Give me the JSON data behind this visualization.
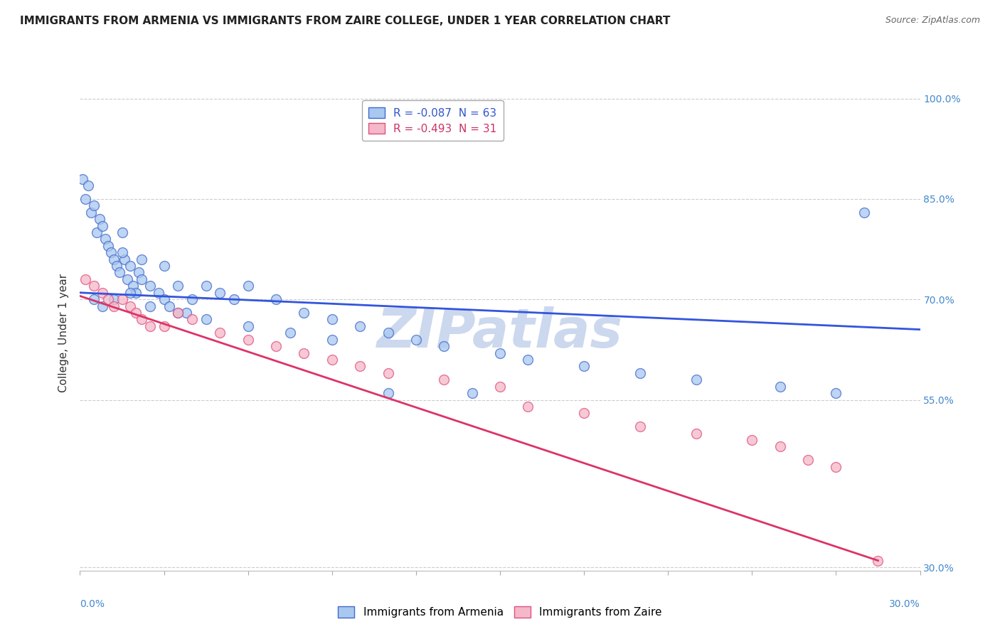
{
  "title": "IMMIGRANTS FROM ARMENIA VS IMMIGRANTS FROM ZAIRE COLLEGE, UNDER 1 YEAR CORRELATION CHART",
  "source": "Source: ZipAtlas.com",
  "ylabel": "College, Under 1 year",
  "legend_entries": [
    {
      "label": "R = -0.087  N = 63",
      "color_face": "#a8c8f0",
      "color_edge": "#4169cc"
    },
    {
      "label": "R = -0.493  N = 31",
      "color_face": "#f5b8c8",
      "color_edge": "#e05080"
    }
  ],
  "legend_text_colors": [
    "#3355cc",
    "#cc3366"
  ],
  "watermark": "ZIPatlas",
  "xlim": [
    0.0,
    0.3
  ],
  "ylim": [
    0.295,
    1.005
  ],
  "yticks": [
    0.3,
    0.55,
    0.7,
    0.85,
    1.0
  ],
  "ytick_labels": [
    "30.0%",
    "55.0%",
    "70.0%",
    "85.0%",
    "100.0%"
  ],
  "xticks": [
    0.0,
    0.03,
    0.06,
    0.09,
    0.12,
    0.15,
    0.18,
    0.21,
    0.24,
    0.27,
    0.3
  ],
  "blue_scatter_x": [
    0.001,
    0.002,
    0.003,
    0.004,
    0.005,
    0.006,
    0.007,
    0.008,
    0.009,
    0.01,
    0.011,
    0.012,
    0.013,
    0.014,
    0.015,
    0.016,
    0.017,
    0.018,
    0.019,
    0.02,
    0.021,
    0.022,
    0.025,
    0.028,
    0.03,
    0.032,
    0.035,
    0.038,
    0.04,
    0.045,
    0.05,
    0.055,
    0.06,
    0.07,
    0.08,
    0.09,
    0.1,
    0.11,
    0.12,
    0.13,
    0.15,
    0.16,
    0.18,
    0.2,
    0.22,
    0.25,
    0.27,
    0.015,
    0.022,
    0.03,
    0.005,
    0.008,
    0.012,
    0.018,
    0.025,
    0.035,
    0.045,
    0.06,
    0.075,
    0.09,
    0.11,
    0.14,
    0.28
  ],
  "blue_scatter_y": [
    0.88,
    0.85,
    0.87,
    0.83,
    0.84,
    0.8,
    0.82,
    0.81,
    0.79,
    0.78,
    0.77,
    0.76,
    0.75,
    0.74,
    0.8,
    0.76,
    0.73,
    0.75,
    0.72,
    0.71,
    0.74,
    0.73,
    0.72,
    0.71,
    0.7,
    0.69,
    0.72,
    0.68,
    0.7,
    0.72,
    0.71,
    0.7,
    0.72,
    0.7,
    0.68,
    0.67,
    0.66,
    0.65,
    0.64,
    0.63,
    0.62,
    0.61,
    0.6,
    0.59,
    0.58,
    0.57,
    0.56,
    0.77,
    0.76,
    0.75,
    0.7,
    0.69,
    0.7,
    0.71,
    0.69,
    0.68,
    0.67,
    0.66,
    0.65,
    0.64,
    0.56,
    0.56,
    0.83
  ],
  "pink_scatter_x": [
    0.002,
    0.005,
    0.008,
    0.01,
    0.012,
    0.015,
    0.018,
    0.02,
    0.022,
    0.025,
    0.03,
    0.035,
    0.04,
    0.05,
    0.06,
    0.07,
    0.08,
    0.09,
    0.1,
    0.11,
    0.13,
    0.15,
    0.16,
    0.18,
    0.2,
    0.22,
    0.24,
    0.25,
    0.26,
    0.27,
    0.285
  ],
  "pink_scatter_y": [
    0.73,
    0.72,
    0.71,
    0.7,
    0.69,
    0.7,
    0.69,
    0.68,
    0.67,
    0.66,
    0.66,
    0.68,
    0.67,
    0.65,
    0.64,
    0.63,
    0.62,
    0.61,
    0.6,
    0.59,
    0.58,
    0.57,
    0.54,
    0.53,
    0.51,
    0.5,
    0.49,
    0.48,
    0.46,
    0.45,
    0.31
  ],
  "blue_line_x": [
    0.0,
    0.3
  ],
  "blue_line_y": [
    0.71,
    0.655
  ],
  "pink_line_x": [
    0.0,
    0.285
  ],
  "pink_line_y": [
    0.705,
    0.31
  ],
  "background_color": "#ffffff",
  "grid_color": "#cccccc",
  "scatter_size": 100,
  "blue_color": "#a8c8f0",
  "blue_edge_color": "#4169cc",
  "pink_color": "#f5b8c8",
  "pink_edge_color": "#e05080",
  "blue_line_color": "#3355dd",
  "pink_line_color": "#dd3366",
  "title_fontsize": 11,
  "source_fontsize": 9,
  "watermark_color": "#ccd8ee",
  "watermark_fontsize": 55,
  "axis_label_color": "#4488cc",
  "ylabel_color": "#333333"
}
